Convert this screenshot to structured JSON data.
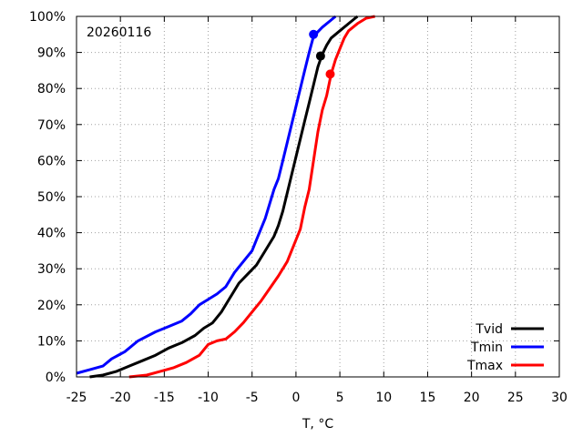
{
  "chart_data": {
    "type": "line",
    "title": "",
    "annotation": "20260116",
    "xlabel": "T, °C",
    "ylabel": "",
    "xlim": [
      -25,
      30
    ],
    "ylim": [
      0,
      100
    ],
    "x_ticks": [
      -25,
      -20,
      -15,
      -10,
      -5,
      0,
      5,
      10,
      15,
      20,
      25,
      30
    ],
    "x_tick_labels": [
      "-25",
      "-20",
      "-15",
      "-10",
      "-5",
      "0",
      "5",
      "10",
      "15",
      "20",
      "25",
      "30"
    ],
    "y_ticks": [
      0,
      10,
      20,
      30,
      40,
      50,
      60,
      70,
      80,
      90,
      100
    ],
    "y_tick_labels": [
      "0%",
      "10%",
      "20%",
      "30%",
      "40%",
      "50%",
      "60%",
      "70%",
      "80%",
      "90%",
      "100%"
    ],
    "grid": true,
    "legend_position": "bottom-right",
    "series": [
      {
        "name": "Tvid",
        "color": "#000000",
        "x": [
          -23.5,
          -22,
          -20.5,
          -19,
          -17.5,
          -16,
          -14.5,
          -13,
          -11.5,
          -10.5,
          -9.5,
          -8.5,
          -7.5,
          -6.5,
          -5.5,
          -4.5,
          -3.5,
          -2.5,
          -2,
          -1.5,
          -1,
          -0.5,
          0,
          0.5,
          1,
          1.5,
          2,
          2.5,
          3,
          3.5,
          4,
          5,
          6,
          7
        ],
        "y": [
          0,
          0.5,
          1.5,
          3,
          4.5,
          6,
          8,
          9.5,
          11.5,
          13.5,
          15,
          18,
          22,
          26,
          28.5,
          31,
          35,
          39,
          42,
          46,
          51,
          56,
          61,
          66,
          71,
          76,
          81,
          86,
          89.5,
          92,
          94,
          96,
          98,
          100
        ]
      },
      {
        "name": "Tmin",
        "color": "#0000ff",
        "x": [
          -25,
          -23.5,
          -22,
          -21,
          -19.5,
          -18,
          -16,
          -14.5,
          -13,
          -12,
          -11,
          -10,
          -9,
          -8,
          -7,
          -6,
          -5,
          -4.5,
          -4,
          -3.5,
          -3,
          -2.5,
          -2,
          -1.5,
          -1,
          -0.5,
          0,
          0.5,
          1,
          1.5,
          2,
          3,
          4,
          4.5
        ],
        "y": [
          1,
          2,
          3,
          5,
          7,
          10,
          12.5,
          14,
          15.5,
          17.5,
          20,
          21.5,
          23,
          25,
          29,
          32,
          35,
          38,
          41,
          44,
          48,
          52,
          55,
          60,
          65,
          70,
          75,
          80,
          85,
          90,
          94.5,
          97,
          99,
          100
        ]
      },
      {
        "name": "Tmax",
        "color": "#ff0000",
        "x": [
          -19,
          -17,
          -15.5,
          -14,
          -12.5,
          -11,
          -10,
          -9,
          -8,
          -7,
          -6,
          -5,
          -4,
          -3,
          -2,
          -1,
          0,
          0.5,
          1,
          1.5,
          2,
          2.5,
          3,
          3.5,
          4,
          4.5,
          5,
          5.5,
          6,
          7,
          8,
          9
        ],
        "y": [
          0,
          0.5,
          1.5,
          2.5,
          4,
          6,
          9,
          10,
          10.5,
          12.5,
          15,
          18,
          21,
          24.5,
          28,
          32,
          38,
          41,
          47,
          52,
          60,
          68,
          74,
          78,
          84,
          88,
          91,
          94,
          96,
          98,
          99.5,
          100
        ]
      }
    ],
    "markers": [
      {
        "series": "Tvid",
        "x": 2.8,
        "y": 89,
        "color": "#000000"
      },
      {
        "series": "Tmin",
        "x": 2.0,
        "y": 95,
        "color": "#0000ff"
      },
      {
        "series": "Tmax",
        "x": 3.9,
        "y": 84,
        "color": "#ff0000"
      }
    ]
  }
}
